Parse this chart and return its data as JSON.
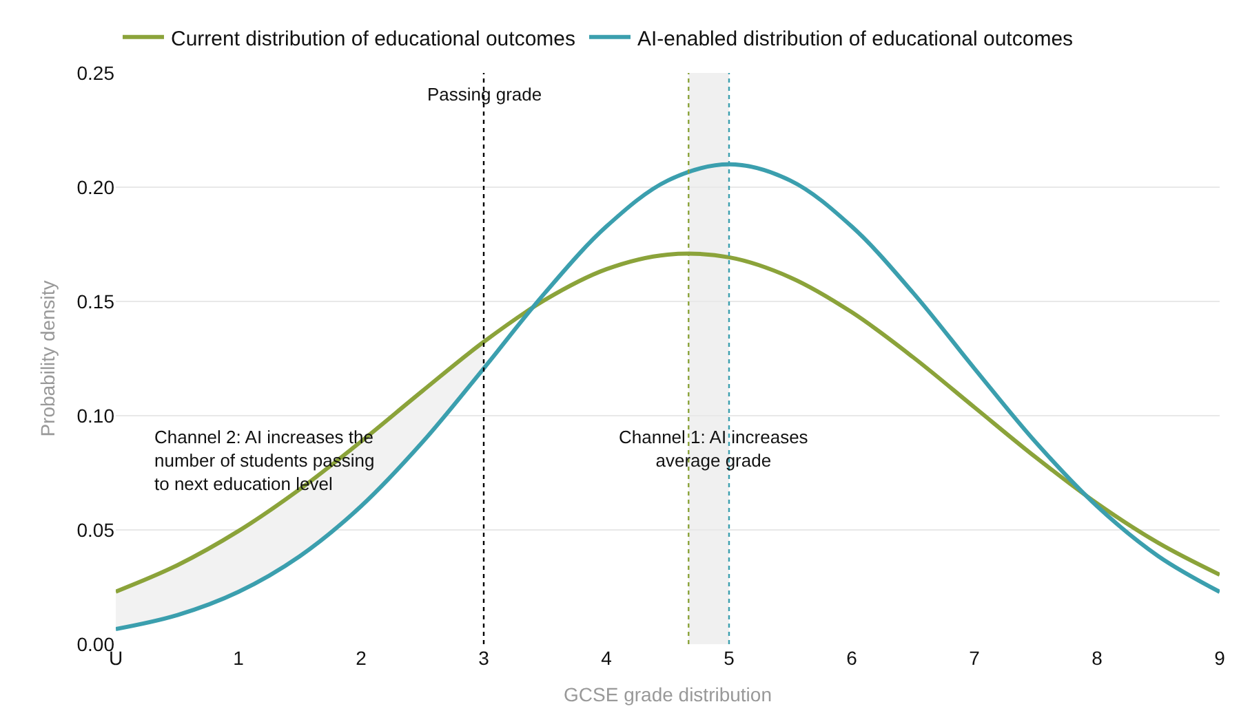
{
  "chart_data": {
    "type": "line",
    "xlabel": "GCSE grade distribution",
    "ylabel": "Probability density",
    "x": [
      0,
      0.5,
      1,
      1.5,
      2,
      2.5,
      3,
      3.5,
      4,
      4.5,
      5,
      5.5,
      6,
      6.5,
      7,
      7.5,
      8,
      8.5,
      9
    ],
    "series": [
      {
        "name": "Current distribution of educational outcomes",
        "color": "#8ba33a",
        "values": [
          0.023,
          0.0345,
          0.0495,
          0.0678,
          0.0887,
          0.1108,
          0.1323,
          0.1507,
          0.1641,
          0.1705,
          0.1693,
          0.1605,
          0.1453,
          0.1256,
          0.1037,
          0.0818,
          0.0616,
          0.0443,
          0.0304
        ]
      },
      {
        "name": "AI-enabled distribution of educational outcomes",
        "color": "#3b9fae",
        "values": [
          0.0066,
          0.0127,
          0.0229,
          0.0385,
          0.0604,
          0.0884,
          0.1207,
          0.1538,
          0.1828,
          0.2029,
          0.21,
          0.2029,
          0.1828,
          0.1538,
          0.1207,
          0.0884,
          0.0604,
          0.0385,
          0.0229
        ],
        "lower": [
          0.0066,
          0.0127,
          0.0229,
          0.0385,
          0.0604,
          0.0884,
          0.1207,
          null,
          null,
          null,
          null,
          null,
          null,
          null,
          null,
          null,
          null,
          null,
          null
        ],
        "upper": [
          0.023,
          0.0345,
          0.0495,
          0.0678,
          0.0887,
          0.1108,
          0.1323,
          null,
          null,
          null,
          null,
          null,
          null,
          null,
          null,
          null,
          null,
          null,
          null
        ]
      }
    ],
    "xlim": [
      0,
      9
    ],
    "xticks": [
      {
        "value": 0,
        "label": "U"
      },
      1,
      2,
      3,
      4,
      5,
      6,
      7,
      8,
      9
    ],
    "ylim": [
      0,
      0.25
    ],
    "yticks": [
      {
        "value": 0,
        "label": "0.00"
      },
      {
        "value": 0.05,
        "label": "0.05"
      },
      {
        "value": 0.1,
        "label": "0.10"
      },
      {
        "value": 0.15,
        "label": "0.15"
      },
      {
        "value": 0.2,
        "label": "0.20"
      },
      {
        "value": 0.25,
        "label": "0.25"
      }
    ],
    "grid": "y",
    "legend": "top left",
    "ref_lines": [
      {
        "axis": "x",
        "value": 3,
        "label": "Passing grade",
        "color": "#000000",
        "line_style": "dotted"
      },
      {
        "axis": "x",
        "value": 4.67,
        "color": "#8ba33a",
        "line_style": "dotted"
      },
      {
        "axis": "x",
        "value": 5,
        "color": "#3b9fae",
        "line_style": "dotted"
      }
    ],
    "bands": [
      {
        "axis": "x",
        "from": 4.67,
        "to": 5,
        "color": "#f0f0f0"
      }
    ],
    "annotations": [
      "Channel 2: AI increases the\nnumber of students passing\nto next education level",
      "Channel 1: AI increases\naverage grade"
    ]
  }
}
